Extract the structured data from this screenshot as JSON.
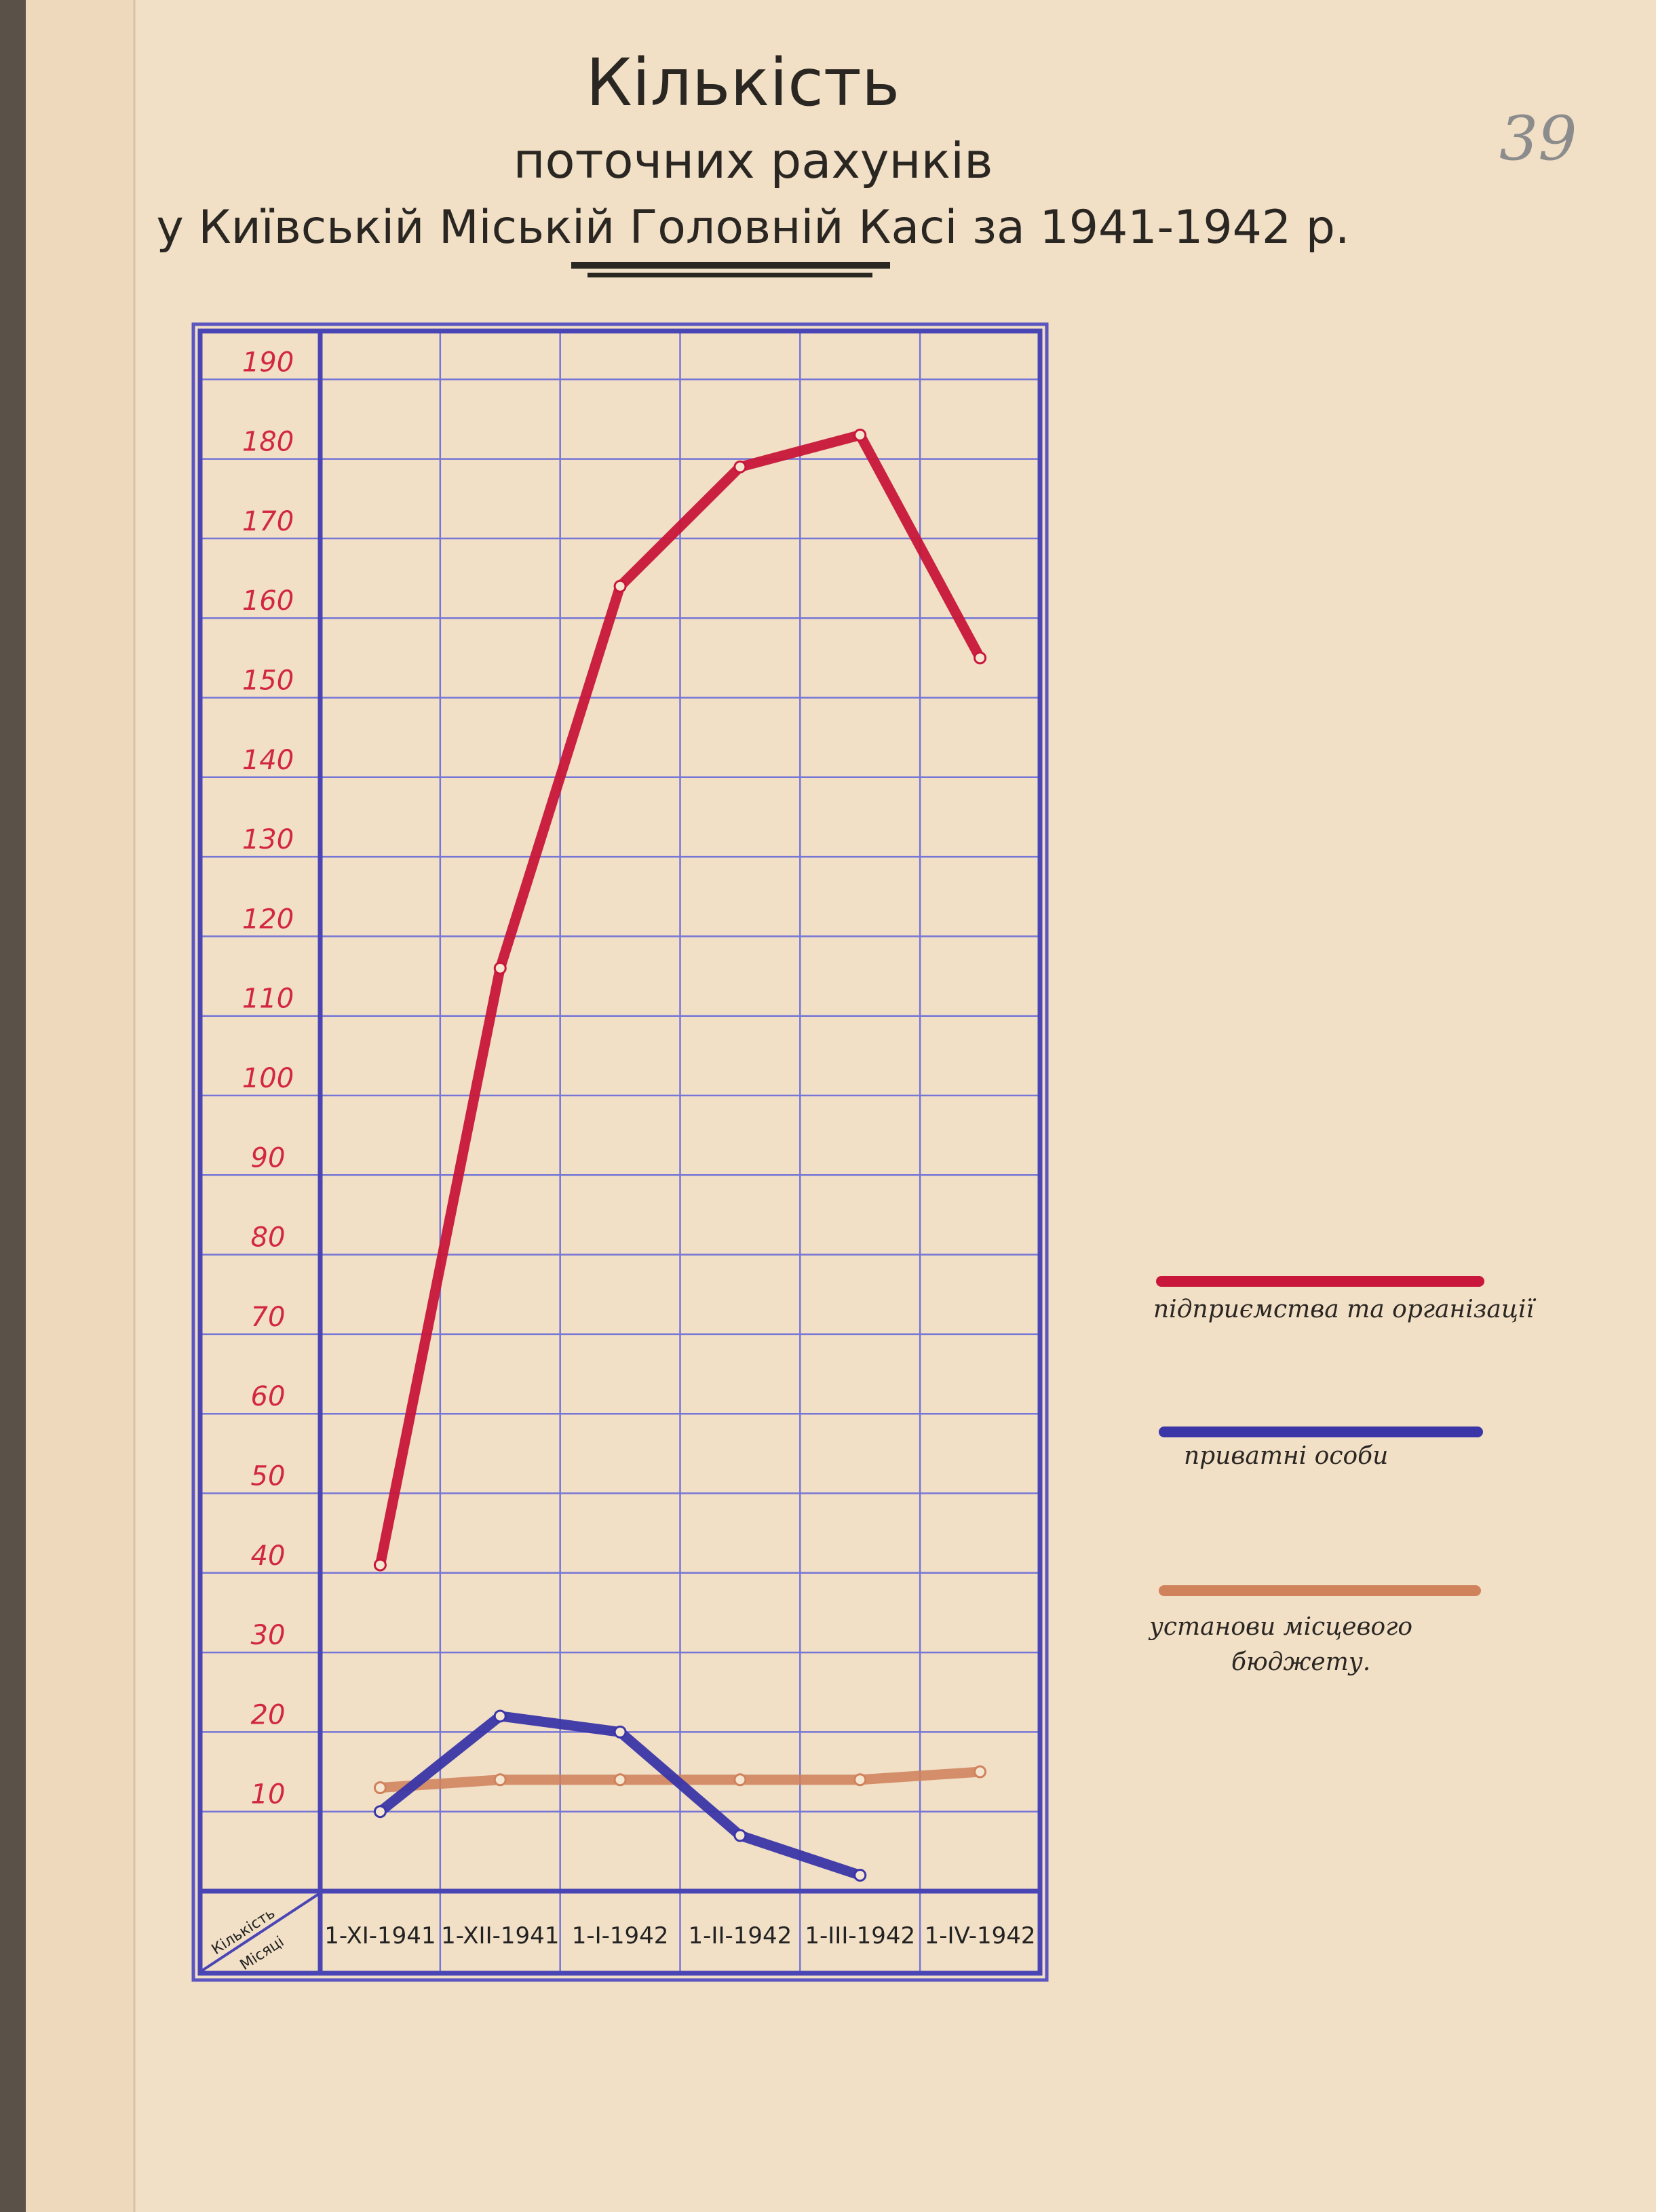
{
  "page_number": "39",
  "title": {
    "line1": "Кількість",
    "line2": "поточних рахунків",
    "line3": "у Київській Міській Головній Касі за 1941-1942 р."
  },
  "corner_labels": {
    "top": "Кількість",
    "bottom": "Місяці"
  },
  "chart_data": {
    "type": "line",
    "title": "Кількість поточних рахунків у Київській Міській Головній Касі за 1941-1942 р.",
    "xlabel": "Місяці",
    "ylabel": "Кількість",
    "categories": [
      "1-XI-1941",
      "1-XII-1941",
      "1-I-1942",
      "1-II-1942",
      "1-III-1942",
      "1-IV-1942"
    ],
    "yticks": [
      10,
      20,
      30,
      40,
      50,
      60,
      70,
      80,
      90,
      100,
      110,
      120,
      130,
      140,
      150,
      160,
      170,
      180,
      190
    ],
    "ylim": [
      0,
      195
    ],
    "grid": true,
    "legend_position": "right",
    "series": [
      {
        "name": "підприємства та організації",
        "color": "#c8173a",
        "values": [
          41,
          116,
          164,
          179,
          183,
          155
        ]
      },
      {
        "name": "приватні особи",
        "color": "#3b36a8",
        "values": [
          10,
          22,
          20,
          7,
          2,
          null
        ]
      },
      {
        "name": "установи місцевого бюджету.",
        "color": "#d0825a",
        "values": [
          13,
          14,
          14,
          14,
          14,
          15
        ]
      }
    ]
  },
  "colors": {
    "paper": "#f1dfc6",
    "grid": "#6b6bd0",
    "frame": "#4a45b5",
    "tick_labels": "#d2283f"
  }
}
